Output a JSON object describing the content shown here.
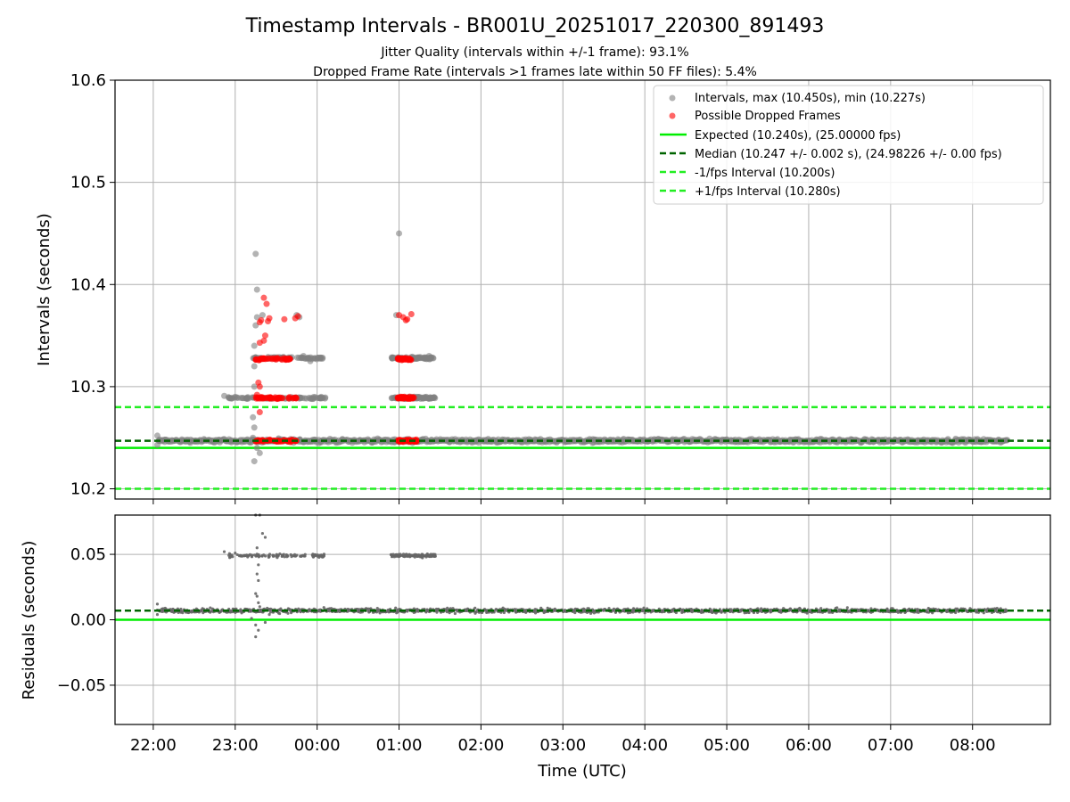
{
  "chart_data": [
    {
      "type": "scatter",
      "title": "Timestamp Intervals - BR001U_20251017_220300_891493",
      "subtitle_1": "Jitter Quality (intervals within +/-1 frame): 93.1%",
      "subtitle_2": "Dropped Frame Rate (intervals >1 frames late within 50 FF files): 5.4%",
      "xlabel": "",
      "ylabel": "Intervals (seconds)",
      "xlim": [
        "21:32",
        "08:57"
      ],
      "ylim": [
        10.19,
        10.6
      ],
      "y_ticks": [
        "10.2",
        "10.3",
        "10.4",
        "10.5",
        "10.6"
      ],
      "grid": true,
      "legend_position": "top-right",
      "legend": [
        {
          "label": "Intervals, max (10.450s), min (10.227s)",
          "kind": "marker",
          "color": "#808080"
        },
        {
          "label": "Possible Dropped Frames",
          "kind": "marker",
          "color": "#ff0000"
        },
        {
          "label": "Expected (10.240s), (25.00000 fps)",
          "kind": "solid",
          "color": "#00ee00"
        },
        {
          "label": "Median (10.247 +/- 0.002 s), (24.98226 +/- 0.00 fps)",
          "kind": "dashed",
          "color": "#006400"
        },
        {
          "label": "-1/fps Interval (10.200s)",
          "kind": "dashed",
          "color": "#22ee22"
        },
        {
          "label": "+1/fps Interval (10.280s)",
          "kind": "dashed",
          "color": "#22ee22"
        }
      ],
      "reference_lines": {
        "expected": 10.24,
        "median": 10.247,
        "minus_1fps": 10.2,
        "plus_1fps": 10.28
      },
      "series": [
        {
          "role": "intervals",
          "band": {
            "x_start": "22:03",
            "x_end": "08:25",
            "y_center": 10.247,
            "y_spread": 0.0025
          },
          "clusters": [
            {
              "x_start": "22:55",
              "x_end": "00:06",
              "y": 10.289
            },
            {
              "x_start": "23:12",
              "x_end": "00:06",
              "y": 10.328
            },
            {
              "x_start": "00:54",
              "x_end": "01:27",
              "y": 10.289
            },
            {
              "x_start": "00:54",
              "x_end": "01:27",
              "y": 10.328
            }
          ],
          "points": [
            [
              "23:15",
              10.43
            ],
            [
              "23:16",
              10.395
            ],
            [
              "01:00",
              10.45
            ],
            [
              "23:20",
              10.37
            ],
            [
              "23:16",
              10.368
            ],
            [
              "23:15",
              10.36
            ],
            [
              "23:14",
              10.34
            ],
            [
              "23:14",
              10.32
            ],
            [
              "23:14",
              10.3
            ],
            [
              "23:13",
              10.27
            ],
            [
              "23:14",
              10.26
            ],
            [
              "23:13",
              10.25
            ],
            [
              "23:16",
              10.24
            ],
            [
              "23:14",
              10.227
            ],
            [
              "23:18",
              10.235
            ],
            [
              "23:45",
              10.37
            ],
            [
              "23:47",
              10.368
            ],
            [
              "22:52",
              10.291
            ],
            [
              "23:00",
              10.29
            ],
            [
              "23:57",
              10.288
            ],
            [
              "00:03",
              10.29
            ],
            [
              "01:08",
              10.289
            ],
            [
              "01:13",
              10.29
            ],
            [
              "01:20",
              10.29
            ],
            [
              "01:25",
              10.289
            ],
            [
              "22:03",
              10.243
            ],
            [
              "22:03",
              10.252
            ],
            [
              "00:58",
              10.37
            ],
            [
              "01:18",
              10.328
            ],
            [
              "01:22",
              10.33
            ],
            [
              "23:50",
              10.33
            ],
            [
              "23:55",
              10.325
            ]
          ]
        },
        {
          "role": "dropped_frames",
          "clusters": [
            {
              "x_start": "23:15",
              "x_end": "23:45",
              "y": 10.247
            },
            {
              "x_start": "23:15",
              "x_end": "23:45",
              "y": 10.289
            },
            {
              "x_start": "23:15",
              "x_end": "23:42",
              "y": 10.327
            },
            {
              "x_start": "00:59",
              "x_end": "01:13",
              "y": 10.247
            },
            {
              "x_start": "00:59",
              "x_end": "01:11",
              "y": 10.289
            },
            {
              "x_start": "00:59",
              "x_end": "01:09",
              "y": 10.327
            }
          ],
          "points": [
            [
              "23:21",
              10.387
            ],
            [
              "23:23",
              10.381
            ],
            [
              "23:25",
              10.367
            ],
            [
              "23:24",
              10.364
            ],
            [
              "23:18",
              10.363
            ],
            [
              "23:19",
              10.365
            ],
            [
              "23:36",
              10.366
            ],
            [
              "23:46",
              10.369
            ],
            [
              "23:44",
              10.367
            ],
            [
              "23:22",
              10.35
            ],
            [
              "23:21",
              10.345
            ],
            [
              "23:18",
              10.343
            ],
            [
              "23:17",
              10.304
            ],
            [
              "23:18",
              10.3
            ],
            [
              "23:18",
              10.275
            ],
            [
              "23:16",
              10.292
            ],
            [
              "01:00",
              10.37
            ],
            [
              "01:03",
              10.368
            ],
            [
              "01:06",
              10.366
            ],
            [
              "01:09",
              10.371
            ],
            [
              "01:05",
              10.365
            ]
          ]
        }
      ]
    },
    {
      "type": "scatter",
      "title": "",
      "xlabel": "Time (UTC)",
      "ylabel": "Residuals (seconds)",
      "xlim": [
        "21:32",
        "08:57"
      ],
      "ylim": [
        -0.08,
        0.08
      ],
      "y_ticks": [
        "−0.05",
        "0.00",
        "0.05"
      ],
      "x_ticks": [
        "22:00",
        "23:00",
        "00:00",
        "01:00",
        "02:00",
        "03:00",
        "04:00",
        "05:00",
        "06:00",
        "07:00",
        "08:00"
      ],
      "grid": true,
      "reference_lines": {
        "zero": 0.0,
        "median": 0.007
      },
      "series": [
        {
          "role": "residuals",
          "band": {
            "x_start": "22:03",
            "x_end": "08:25",
            "y_center": 0.007,
            "y_spread": 0.0025
          },
          "clusters": [
            {
              "x_start": "22:55",
              "x_end": "00:06",
              "y": 0.049
            },
            {
              "x_start": "00:54",
              "x_end": "01:27",
              "y": 0.049
            }
          ],
          "points": [
            [
              "23:15",
              0.08
            ],
            [
              "23:18",
              0.08
            ],
            [
              "23:20",
              0.066
            ],
            [
              "23:22",
              0.063
            ],
            [
              "23:16",
              0.055
            ],
            [
              "23:17",
              0.042
            ],
            [
              "23:16",
              0.035
            ],
            [
              "23:17",
              0.03
            ],
            [
              "23:15",
              0.02
            ],
            [
              "23:16",
              0.018
            ],
            [
              "23:17",
              0.013
            ],
            [
              "23:18",
              0.01
            ],
            [
              "23:15",
              -0.004
            ],
            [
              "23:17",
              -0.008
            ],
            [
              "23:15",
              -0.013
            ],
            [
              "22:03",
              0.012
            ],
            [
              "22:03",
              0.004
            ],
            [
              "22:52",
              0.052
            ],
            [
              "23:00",
              0.051
            ],
            [
              "23:22",
              -0.002
            ],
            [
              "23:12",
              0.001
            ],
            [
              "23:25",
              0.004
            ]
          ]
        }
      ]
    }
  ]
}
